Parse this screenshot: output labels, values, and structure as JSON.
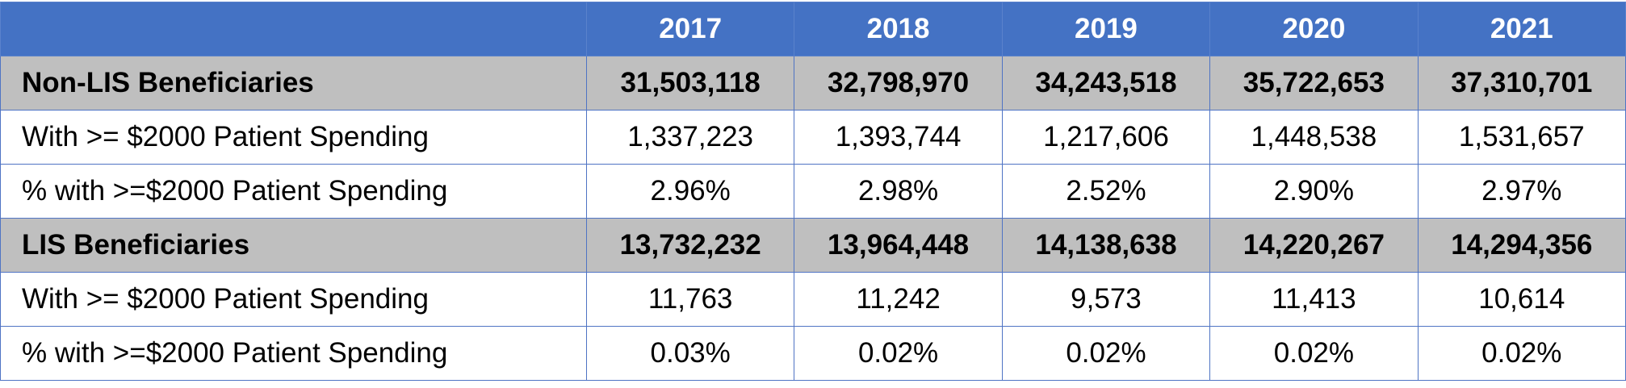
{
  "table": {
    "header": {
      "label": "",
      "years": [
        "2017",
        "2018",
        "2019",
        "2020",
        "2021"
      ]
    },
    "rows": [
      {
        "kind": "group",
        "label": "Non-LIS Beneficiaries",
        "values": [
          "31,503,118",
          "32,798,970",
          "34,243,518",
          "35,722,653",
          "37,310,701"
        ]
      },
      {
        "kind": "detail",
        "label": "With >= $2000 Patient Spending",
        "values": [
          "1,337,223",
          "1,393,744",
          "1,217,606",
          "1,448,538",
          "1,531,657"
        ]
      },
      {
        "kind": "detail",
        "label": "% with >=$2000 Patient Spending",
        "values": [
          "2.96%",
          "2.98%",
          "2.52%",
          "2.90%",
          "2.97%"
        ]
      },
      {
        "kind": "group",
        "label": "LIS Beneficiaries",
        "values": [
          "13,732,232",
          "13,964,448",
          "14,138,638",
          "14,220,267",
          "14,294,356"
        ]
      },
      {
        "kind": "detail",
        "label": "With >= $2000 Patient Spending",
        "values": [
          "11,763",
          "11,242",
          "9,573",
          "11,413",
          "10,614"
        ]
      },
      {
        "kind": "detail",
        "label": "% with >=$2000 Patient Spending",
        "values": [
          "0.03%",
          "0.02%",
          "0.02%",
          "0.02%",
          "0.02%"
        ]
      }
    ]
  },
  "colors": {
    "header_bg": "#4472c4",
    "header_text": "#ffffff",
    "group_bg": "#bfbfbf",
    "border": "#4f74c4"
  }
}
